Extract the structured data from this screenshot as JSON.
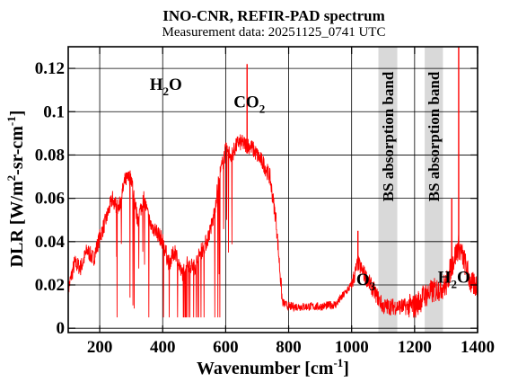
{
  "chart_data": {
    "type": "line",
    "title": "INO-CNR, REFIR-PAD spectrum",
    "subtitle": "Measurement data: 20251125_0741 UTC",
    "xlabel": "Wavenumber [cm-1]",
    "ylabel": "DLR [W/m2-sr-cm-1]",
    "xlim": [
      100,
      1400
    ],
    "ylim": [
      -0.002,
      0.13
    ],
    "xticks": [
      200,
      400,
      600,
      800,
      1000,
      1200,
      1400
    ],
    "yticks": [
      0,
      0.02,
      0.04,
      0.06,
      0.08,
      0.1,
      0.12
    ],
    "ytick_labels": [
      "0",
      "0.02",
      "0.04",
      "0.06",
      "0.08",
      "0.1",
      "0.12"
    ],
    "grid": true,
    "series": [
      {
        "color": "#ff0000",
        "x": [
          100,
          120,
          140,
          160,
          180,
          200,
          220,
          240,
          260,
          280,
          300,
          320,
          340,
          360,
          380,
          400,
          420,
          440,
          460,
          480,
          500,
          520,
          540,
          560,
          580,
          600,
          620,
          640,
          660,
          680,
          700,
          720,
          740,
          760,
          780,
          800,
          850,
          900,
          950,
          1000,
          1020,
          1040,
          1060,
          1080,
          1100,
          1150,
          1200,
          1230,
          1300,
          1320,
          1340,
          1360,
          1380,
          1400
        ],
        "y": [
          0.018,
          0.03,
          0.028,
          0.036,
          0.032,
          0.042,
          0.05,
          0.06,
          0.055,
          0.068,
          0.07,
          0.05,
          0.06,
          0.048,
          0.045,
          0.04,
          0.03,
          0.036,
          0.025,
          0.03,
          0.028,
          0.035,
          0.04,
          0.05,
          0.07,
          0.082,
          0.08,
          0.086,
          0.085,
          0.084,
          0.08,
          0.076,
          0.07,
          0.05,
          0.012,
          0.01,
          0.01,
          0.01,
          0.011,
          0.02,
          0.03,
          0.025,
          0.02,
          0.015,
          0.01,
          0.01,
          0.01,
          0.015,
          0.02,
          0.03,
          0.038,
          0.03,
          0.02,
          0.02
        ]
      }
    ],
    "spikes": [
      {
        "x": 668,
        "y": 0.122
      },
      {
        "x": 1340,
        "y": 0.13
      },
      {
        "x": 1020,
        "y": 0.045
      },
      {
        "x": 1318,
        "y": 0.06
      }
    ],
    "shaded_bands": [
      {
        "x0": 1085,
        "x1": 1145,
        "label": "BS absorption band",
        "color": "#d9d9d9"
      },
      {
        "x0": 1232,
        "x1": 1290,
        "label": "BS absorption band",
        "color": "#d9d9d9"
      }
    ],
    "annotations": [
      {
        "main": "H",
        "sub": "2",
        "tail": "O",
        "x": 410,
        "y": 0.11
      },
      {
        "main": "CO",
        "sub": "2",
        "tail": "",
        "x": 675,
        "y": 0.102
      },
      {
        "main": "O",
        "sub": "3",
        "tail": "",
        "x": 1045,
        "y": 0.02
      },
      {
        "main": "H",
        "sub": "2",
        "tail": "O",
        "x": 1325,
        "y": 0.021
      }
    ]
  },
  "labels": {
    "xlabel_main": "Wavenumber [cm",
    "xlabel_sup": "-1",
    "xlabel_tail": "]",
    "ylabel_main": "DLR [W/m",
    "ylabel_sup1": "2",
    "ylabel_mid": "-sr-cm",
    "ylabel_sup2": "-1",
    "ylabel_tail": "]"
  }
}
